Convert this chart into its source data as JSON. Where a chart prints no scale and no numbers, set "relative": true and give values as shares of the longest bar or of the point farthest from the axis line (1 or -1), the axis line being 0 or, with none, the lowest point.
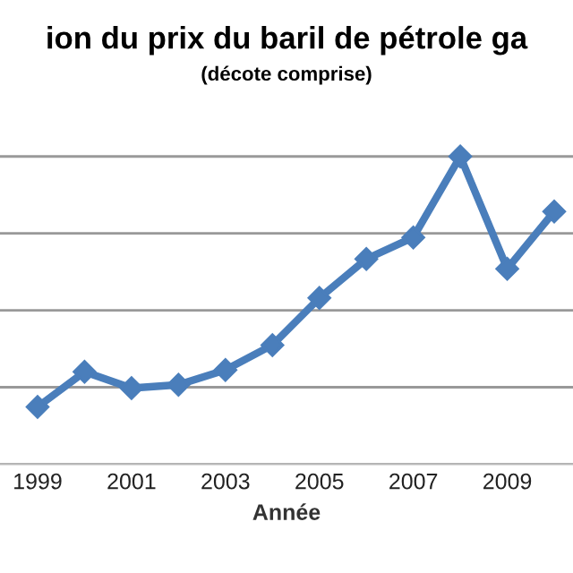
{
  "chart_data": {
    "type": "line",
    "title": "ion du prix du baril de pétrole ga",
    "subtitle": "(décote comprise)",
    "xlabel": "Année",
    "relative": true,
    "x": [
      1999,
      2000,
      2001,
      2002,
      2003,
      2004,
      2005,
      2006,
      2007,
      2008,
      2009,
      2010
    ],
    "series": [
      {
        "color": "#4a7ebb",
        "values": [
          0.186,
          0.3,
          0.247,
          0.258,
          0.306,
          0.387,
          0.54,
          0.667,
          0.737,
          1,
          0.635,
          0.821
        ]
      }
    ],
    "xlim": [
      1998.2,
      2010.4
    ],
    "xticks": [
      1999,
      2001,
      2003,
      2005,
      2007,
      2009
    ],
    "grid": "y",
    "marker": "diamond",
    "line_style": "solid",
    "legend": false
  }
}
